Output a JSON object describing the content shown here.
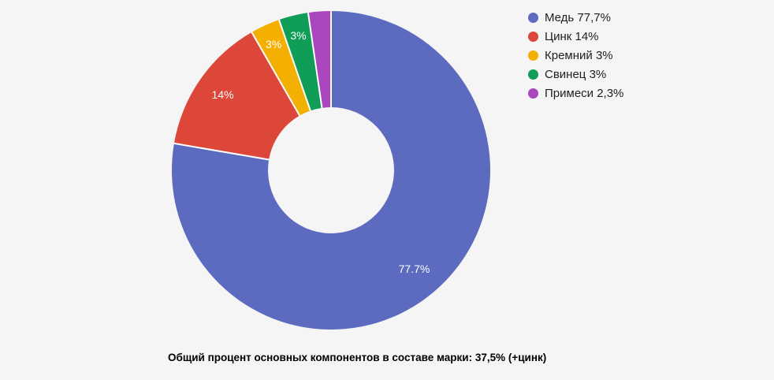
{
  "page": {
    "background": "#f5f5f5"
  },
  "chart_data": {
    "type": "pie",
    "donut": true,
    "start_angle_deg": 0,
    "direction": "clockwise",
    "legend_position": "right",
    "divider_color": "#ffffff",
    "slices": [
      {
        "label": "Медь",
        "value": 77.7,
        "color": "#5c6bc0",
        "slice_label": "77.7%",
        "legend_label": "Медь 77,7%"
      },
      {
        "label": "Цинк",
        "value": 14,
        "color": "#dc473a",
        "slice_label": "14%",
        "legend_label": "Цинк 14%"
      },
      {
        "label": "Кремний",
        "value": 3,
        "color": "#f4b000",
        "slice_label": "3%",
        "legend_label": "Кремний 3%"
      },
      {
        "label": "Свинец",
        "value": 3,
        "color": "#0f9d58",
        "slice_label": "3%",
        "legend_label": "Свинец 3%"
      },
      {
        "label": "Примеси",
        "value": 2.3,
        "color": "#aa46be",
        "slice_label": "",
        "legend_label": "Примеси 2,3%"
      }
    ]
  },
  "caption": {
    "text": "Общий процент основных компонентов в составе марки: 37,5% (+цинк)"
  }
}
